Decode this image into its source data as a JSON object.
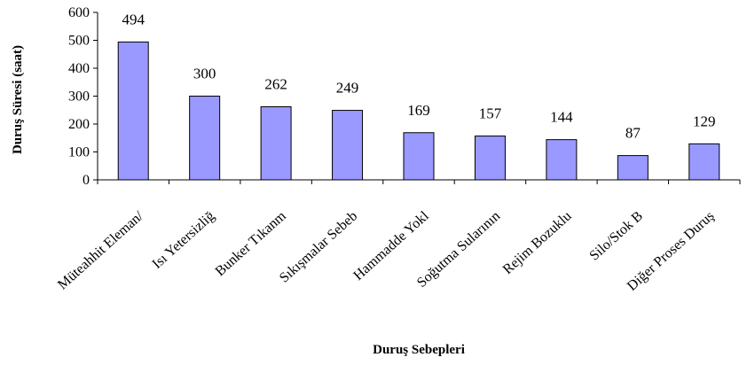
{
  "chart_data": {
    "type": "bar",
    "categories": [
      "Müteahhit Eleman/",
      "Isı Yetersizliğ",
      "Bunker Tıkanm",
      "Sıkışmalar Sebeb",
      "Hammadde Yokl",
      "Soğutma Sularının",
      "Rejim Bozuklu",
      "Silo/Stok B",
      "Diğer Proses Duruş"
    ],
    "values": [
      494,
      300,
      262,
      249,
      169,
      157,
      144,
      87,
      129
    ],
    "data_labels": [
      "494",
      "300",
      "262",
      "249",
      "169",
      "157",
      "144",
      "87",
      "129"
    ],
    "xlabel": "Duruş Sebepleri",
    "ylabel": "Duruş Süresi (saat)",
    "ylim": [
      0,
      600
    ],
    "yticks": [
      0,
      100,
      200,
      300,
      400,
      500,
      600
    ],
    "grid": false,
    "legend": "none",
    "bar_color": "#9999ff",
    "bar_edge_color": "#000000"
  }
}
